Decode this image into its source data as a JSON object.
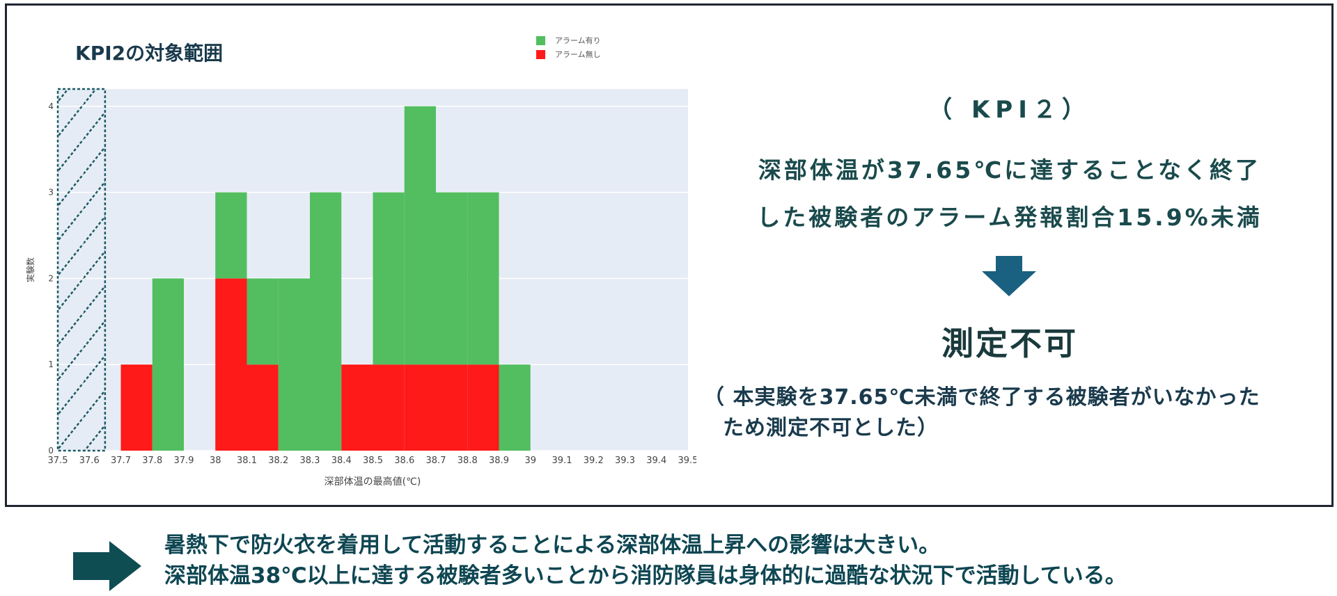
{
  "chart_data": {
    "type": "bar",
    "title": "KPI2の対象範囲",
    "xlabel": "深部体温の最高値(℃)",
    "ylabel": "実験数",
    "xlim": [
      37.5,
      39.5
    ],
    "ylim": [
      0,
      4
    ],
    "bin_width": 0.1,
    "barmode": "stack",
    "x_ticks": [
      "37.5",
      "37.6",
      "37.7",
      "37.8",
      "37.9",
      "38",
      "38.1",
      "38.2",
      "38.3",
      "38.4",
      "38.5",
      "38.6",
      "38.7",
      "38.8",
      "38.9",
      "39",
      "39.1",
      "39.2",
      "39.3",
      "39.4",
      "39.5"
    ],
    "y_ticks": [
      "0",
      "1",
      "2",
      "3",
      "4"
    ],
    "bin_starts": [
      37.7,
      37.8,
      38.0,
      38.1,
      38.2,
      38.3,
      38.4,
      38.5,
      38.6,
      38.7,
      38.8,
      38.9
    ],
    "series": [
      {
        "name": "アラーム無し",
        "color": "#ff1a1a",
        "values": [
          1,
          0,
          2,
          1,
          0,
          0,
          1,
          1,
          1,
          1,
          1,
          0
        ]
      },
      {
        "name": "アラーム有り",
        "color": "#52be60",
        "values": [
          0,
          2,
          1,
          1,
          2,
          3,
          0,
          2,
          3,
          2,
          2,
          1
        ]
      }
    ],
    "excluded_region": [
      37.5,
      37.65
    ],
    "legend_position": "top-right",
    "grid": true,
    "background": "#e6ecf5"
  },
  "panel": {
    "kpi_heading": "（ KPI２）",
    "condition_line1": "深部体温が37.65℃に達することなく終了",
    "condition_line2": "した被験者のアラーム発報割合15.9%未満",
    "result": "測定不可",
    "note_line1": "（ 本実験を37.65℃未満で終了する被験者がいなかった",
    "note_line2": "ため測定不可とした）"
  },
  "conclusion": {
    "line1": "暑熱下で防火衣を着用して活動することによる深部体温上昇への影響は大きい。",
    "line2": "深部体温38℃以上に達する被験者多いことから消防隊員は身体的に過酷な状況下で活動している。"
  },
  "colors": {
    "alarm_on": "#52be60",
    "alarm_off": "#ff1a1a",
    "plot_bg": "#e6ecf5",
    "accent_arrow_down": "#1a6080",
    "accent_arrow_right": "#0e4d52",
    "text_teal": "#1a4a4c"
  },
  "icons": {
    "down_arrow": "arrow-down-icon",
    "right_arrow": "arrow-right-icon"
  }
}
